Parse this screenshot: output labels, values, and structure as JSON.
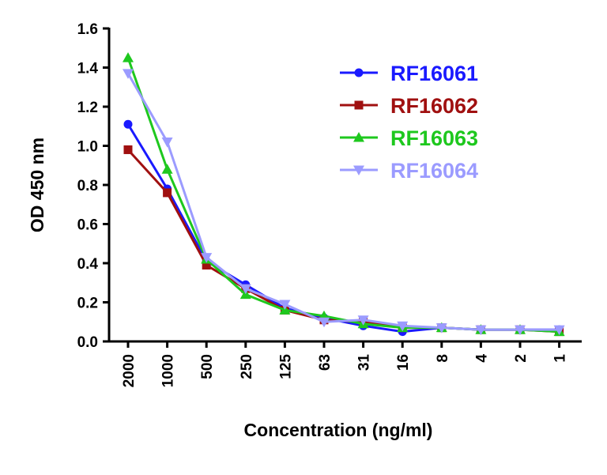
{
  "chart_data": {
    "type": "line",
    "title": "",
    "xlabel": "Concentration (ng/ml)",
    "ylabel": "OD 450 nm",
    "categories": [
      "2000",
      "1000",
      "500",
      "250",
      "125",
      "63",
      "31",
      "16",
      "8",
      "4",
      "2",
      "1"
    ],
    "ylim": [
      0,
      1.6
    ],
    "yticks": [
      "0.0",
      "0.2",
      "0.4",
      "0.6",
      "0.8",
      "1.0",
      "1.2",
      "1.4",
      "1.6"
    ],
    "ytick_values": [
      0,
      0.2,
      0.4,
      0.6,
      0.8,
      1.0,
      1.2,
      1.4,
      1.6
    ],
    "legend_position": "top-right",
    "grid": false,
    "series": [
      {
        "name": "RF16061",
        "color": "#1a1aff",
        "marker": "circle",
        "values": [
          1.11,
          0.78,
          0.41,
          0.29,
          0.17,
          0.12,
          0.08,
          0.05,
          0.07,
          0.06,
          0.06,
          0.06
        ]
      },
      {
        "name": "RF16062",
        "color": "#a01010",
        "marker": "square",
        "values": [
          0.98,
          0.76,
          0.39,
          0.27,
          0.16,
          0.11,
          0.1,
          0.07,
          0.07,
          0.06,
          0.06,
          0.05
        ]
      },
      {
        "name": "RF16063",
        "color": "#1ec81e",
        "marker": "triangle-up",
        "values": [
          1.45,
          0.88,
          0.42,
          0.24,
          0.16,
          0.13,
          0.09,
          0.07,
          0.07,
          0.06,
          0.06,
          0.05
        ]
      },
      {
        "name": "RF16064",
        "color": "#9b9bff",
        "marker": "triangle-down",
        "values": [
          1.37,
          1.02,
          0.43,
          0.27,
          0.19,
          0.1,
          0.11,
          0.08,
          0.07,
          0.06,
          0.06,
          0.06
        ]
      }
    ]
  }
}
